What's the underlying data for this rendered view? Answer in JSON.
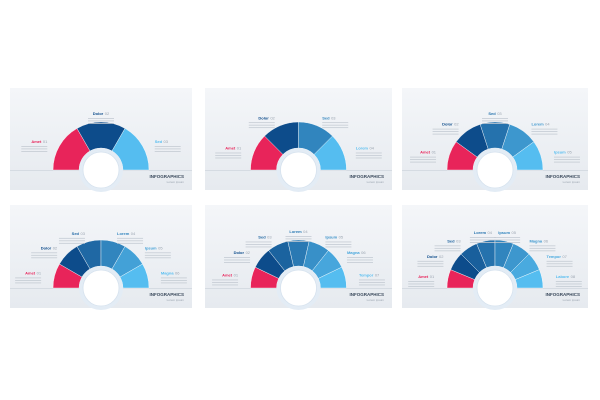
{
  "brand": "INFOGRAPHICS",
  "brand_sub": "Lorem ipsum",
  "panels": [
    {
      "segments": [
        {
          "label": "Amet",
          "number": "01"
        },
        {
          "label": "Dolor",
          "number": "02"
        },
        {
          "label": "Sed",
          "number": "03"
        }
      ]
    },
    {
      "segments": [
        {
          "label": "Amet",
          "number": "01"
        },
        {
          "label": "Dolor",
          "number": "02"
        },
        {
          "label": "Sed",
          "number": "03"
        },
        {
          "label": "Lorem",
          "number": "04"
        }
      ]
    },
    {
      "segments": [
        {
          "label": "Amet",
          "number": "01"
        },
        {
          "label": "Dolor",
          "number": "02"
        },
        {
          "label": "Sed",
          "number": "03"
        },
        {
          "label": "Lorem",
          "number": "04"
        },
        {
          "label": "Ipsum",
          "number": "05"
        }
      ]
    },
    {
      "segments": [
        {
          "label": "Amet",
          "number": "01"
        },
        {
          "label": "Dolor",
          "number": "02"
        },
        {
          "label": "Sed",
          "number": "03"
        },
        {
          "label": "Lorem",
          "number": "04"
        },
        {
          "label": "Ipsum",
          "number": "05"
        },
        {
          "label": "Magna",
          "number": "06"
        }
      ]
    },
    {
      "segments": [
        {
          "label": "Amet",
          "number": "01"
        },
        {
          "label": "Dolor",
          "number": "02"
        },
        {
          "label": "Sed",
          "number": "03"
        },
        {
          "label": "Lorem",
          "number": "04"
        },
        {
          "label": "Ipsum",
          "number": "05"
        },
        {
          "label": "Magna",
          "number": "06"
        },
        {
          "label": "Tempor",
          "number": "07"
        }
      ]
    },
    {
      "segments": [
        {
          "label": "Amet",
          "number": "01"
        },
        {
          "label": "Dolor",
          "number": "02"
        },
        {
          "label": "Sed",
          "number": "03"
        },
        {
          "label": "Lorem",
          "number": "04"
        },
        {
          "label": "Ipsum",
          "number": "05"
        },
        {
          "label": "Magna",
          "number": "06"
        },
        {
          "label": "Tempor",
          "number": "07"
        },
        {
          "label": "Labore",
          "number": "08"
        }
      ]
    }
  ]
}
